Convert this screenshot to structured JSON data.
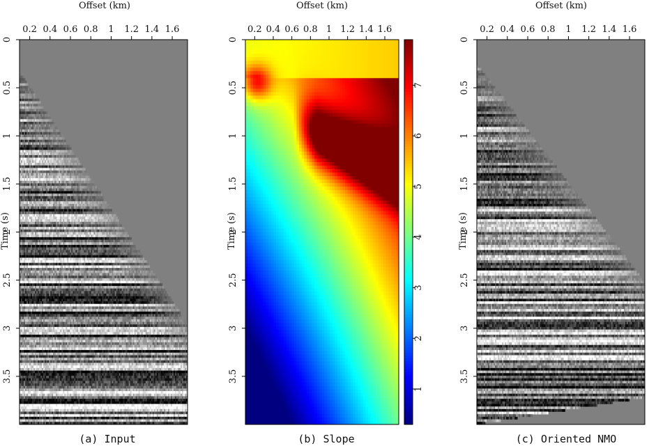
{
  "panels": [
    {
      "id": "a",
      "caption": "(a) Input",
      "xlabel": "Offset (km)",
      "ylabel": "Time (s)",
      "xticks": [
        "0.2",
        "0.4",
        "0.6",
        "0.8",
        "1",
        "1.2",
        "1.4",
        "1.6"
      ],
      "yticks": [
        "0",
        "0.5",
        "1",
        "1.5",
        "2",
        "2.5",
        "3",
        "3.5"
      ],
      "type": "seismic-gather"
    },
    {
      "id": "b",
      "caption": "(b) Slope",
      "xlabel": "Offset (km)",
      "ylabel": "Time (s)",
      "xticks": [
        "0.2",
        "0.4",
        "0.6",
        "0.8",
        "1",
        "1.2",
        "1.4",
        "1.6"
      ],
      "yticks": [
        "0",
        "0.5",
        "1",
        "1.5",
        "2",
        "2.5",
        "3",
        "3.5"
      ],
      "colorbar_ticks": [
        "1",
        "2",
        "3",
        "4",
        "5",
        "6",
        "7"
      ],
      "type": "heatmap"
    },
    {
      "id": "c",
      "caption": "(c) Oriented NMO",
      "xlabel": "Offset (km)",
      "ylabel": "Time (s)",
      "xticks": [
        "0.2",
        "0.4",
        "0.6",
        "0.8",
        "1",
        "1.2",
        "1.4",
        "1.6"
      ],
      "yticks": [
        "0",
        "0.5",
        "1",
        "1.5",
        "2",
        "2.5",
        "3",
        "3.5"
      ],
      "type": "seismic-gather"
    }
  ],
  "chart_data": [
    {
      "type": "heatmap",
      "panel": "a",
      "xlabel": "Offset (km)",
      "ylabel": "Time (s)",
      "xlim": [
        0.1,
        1.75
      ],
      "ylim": [
        0,
        4
      ],
      "note": "seismic traces, muted above first-arrival curve"
    },
    {
      "type": "heatmap",
      "panel": "b",
      "xlabel": "Offset (km)",
      "ylabel": "Time (s)",
      "xlim": [
        0.1,
        1.75
      ],
      "ylim": [
        0,
        4
      ],
      "colorbar_range": [
        0.3,
        7.9
      ]
    },
    {
      "type": "heatmap",
      "panel": "c",
      "xlabel": "Offset (km)",
      "ylabel": "Time (s)",
      "xlim": [
        0.1,
        1.75
      ],
      "ylim": [
        0,
        4
      ]
    }
  ]
}
